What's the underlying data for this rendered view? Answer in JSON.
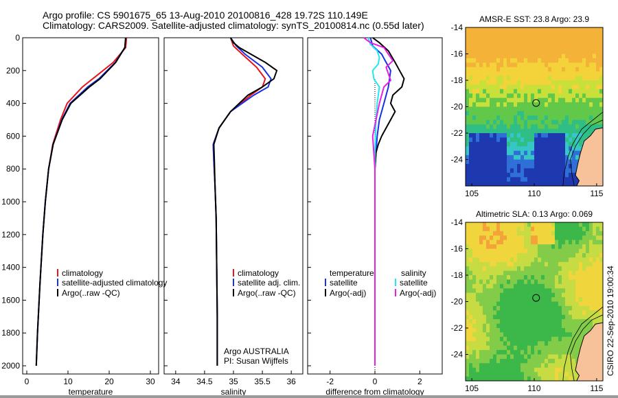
{
  "header": {
    "line1": "Argo profile: CS 5901675_65 13-Aug-2010 20100816_428 19.72S 110.149E",
    "line2": "Climatology: CARS2009. Satellite-adjusted climatology: synTS_20100814.nc (0.55d later)"
  },
  "stamp": "CSIRO 22-Sep-2010 19:00:34",
  "colors": {
    "climatology": "#e8141a",
    "satellite": "#1530e6",
    "argo": "#000000",
    "sal_satellite": "#22e8ee",
    "sal_argo": "#e61ee6"
  },
  "chart_data": [
    {
      "type": "line",
      "name": "temperature-panel",
      "xlabel": "temperature",
      "ylabel": "",
      "xlim": [
        -1,
        32
      ],
      "ylim": [
        0,
        2050
      ],
      "y_reversed": true,
      "x_ticks": [
        "0",
        "10",
        "20",
        "30"
      ],
      "y_ticks": [
        "0",
        "200",
        "400",
        "600",
        "800",
        "1000",
        "1200",
        "1400",
        "1600",
        "1800",
        "2000"
      ],
      "legend": [
        "climatology",
        "satellite-adjusted climatology",
        "Argo(..raw -QC)"
      ],
      "series": [
        {
          "key": "climatology",
          "depth": [
            0,
            60,
            150,
            250,
            300,
            400,
            500,
            650,
            800,
            1000,
            1200,
            1500,
            1800,
            2000
          ],
          "values": [
            24.2,
            24.0,
            21.0,
            16.0,
            13.5,
            9.8,
            8.2,
            6.3,
            5.3,
            4.5,
            3.9,
            3.2,
            2.6,
            2.3
          ]
        },
        {
          "key": "satellite",
          "depth": [
            0,
            60,
            150,
            250,
            300,
            400,
            500,
            650,
            800,
            1000,
            1200,
            1500,
            1800,
            2000
          ],
          "values": [
            24.0,
            23.8,
            21.5,
            17.5,
            14.8,
            10.5,
            8.5,
            6.4,
            5.3,
            4.5,
            3.9,
            3.2,
            2.6,
            2.3
          ]
        },
        {
          "key": "argo",
          "depth": [
            0,
            60,
            150,
            250,
            300,
            400,
            500,
            650,
            800,
            1000,
            1200,
            1500,
            1800,
            2000
          ],
          "values": [
            24.0,
            23.8,
            21.6,
            17.8,
            15.2,
            10.7,
            8.6,
            6.4,
            5.3,
            4.5,
            3.9,
            3.2,
            2.6,
            2.3
          ]
        }
      ]
    },
    {
      "type": "line",
      "name": "salinity-panel",
      "xlabel": "salinity",
      "ylabel": "",
      "xlim": [
        33.8,
        36.2
      ],
      "ylim": [
        0,
        2050
      ],
      "y_reversed": true,
      "x_ticks": [
        "34",
        "34.5",
        "35",
        "35.5",
        "36"
      ],
      "legend": [
        "climatology",
        "satellite adj. clim.",
        "Argo(..raw -QC)"
      ],
      "annotation": [
        "Argo AUSTRALIA",
        "PI: Susan Wijffels"
      ],
      "series": [
        {
          "key": "climatology",
          "depth": [
            0,
            50,
            100,
            180,
            250,
            300,
            350,
            450,
            550,
            650,
            750,
            900,
            1100,
            1400,
            1700,
            2000
          ],
          "values": [
            34.95,
            35.0,
            35.15,
            35.4,
            35.55,
            35.5,
            35.3,
            34.95,
            34.75,
            34.65,
            34.66,
            34.68,
            34.7,
            34.71,
            34.72,
            34.72
          ]
        },
        {
          "key": "satellite",
          "depth": [
            0,
            50,
            100,
            180,
            250,
            300,
            350,
            450,
            550,
            650,
            750,
            900,
            1100,
            1400,
            1700,
            2000
          ],
          "values": [
            34.95,
            35.05,
            35.2,
            35.5,
            35.65,
            35.6,
            35.35,
            34.95,
            34.75,
            34.65,
            34.66,
            34.68,
            34.7,
            34.71,
            34.72,
            34.72
          ]
        },
        {
          "key": "argo",
          "depth": [
            0,
            30,
            60,
            100,
            150,
            200,
            250,
            300,
            350,
            450,
            550,
            650,
            750,
            900,
            1100,
            1400,
            1700,
            2000
          ],
          "values": [
            34.95,
            35.0,
            35.1,
            35.3,
            35.55,
            35.75,
            35.7,
            35.5,
            35.25,
            34.95,
            34.75,
            34.66,
            34.67,
            34.68,
            34.7,
            34.71,
            34.72,
            34.72
          ]
        }
      ]
    },
    {
      "type": "line",
      "name": "difference-panel",
      "xlabel": "difference from climatology",
      "ylabel": "",
      "xlim": [
        -3,
        3
      ],
      "ylim": [
        0,
        2050
      ],
      "y_reversed": true,
      "x_ticks": [
        "-2",
        "0",
        "2"
      ],
      "legend_temperature": {
        "title": "temperature",
        "items": [
          "satellite",
          "Argo(-adj)"
        ]
      },
      "legend_salinity": {
        "title": "salinity",
        "items": [
          "satellite",
          "Argo(-adj)"
        ]
      },
      "series": [
        {
          "key": "satellite",
          "depth": [
            0,
            50,
            100,
            150,
            200,
            300,
            400,
            500,
            600,
            700,
            800,
            1000,
            1500,
            2000
          ],
          "values": [
            -0.2,
            -0.1,
            0.3,
            0.5,
            0.7,
            0.6,
            0.4,
            0.2,
            0.1,
            0.05,
            0.0,
            0.0,
            0.0,
            0.0
          ]
        },
        {
          "key": "argo",
          "depth": [
            0,
            30,
            80,
            150,
            200,
            250,
            300,
            350,
            400,
            450,
            500,
            550,
            600,
            650,
            700,
            800,
            1000,
            1500,
            2000
          ],
          "values": [
            -0.1,
            0.2,
            0.6,
            0.9,
            1.1,
            1.3,
            1.2,
            0.8,
            0.7,
            0.9,
            0.7,
            0.5,
            0.3,
            0.15,
            0.05,
            0.0,
            0.0,
            0.0,
            0.0
          ]
        },
        {
          "key": "sal_satellite",
          "depth": [
            0,
            40,
            80,
            120,
            160,
            200,
            250,
            300,
            400,
            500,
            600,
            700,
            800,
            1000,
            1500,
            2000
          ],
          "values": [
            -0.3,
            -0.2,
            0.1,
            0.2,
            0.15,
            -0.1,
            -0.05,
            0.2,
            0.1,
            0.05,
            0.02,
            0.0,
            0.0,
            0.0,
            0.0,
            0.0
          ]
        },
        {
          "key": "sal_argo",
          "depth": [
            0,
            30,
            60,
            100,
            140,
            180,
            220,
            260,
            300,
            400,
            500,
            600,
            700,
            800,
            1000,
            1500,
            2000
          ],
          "values": [
            -0.5,
            -0.2,
            0.4,
            0.6,
            0.8,
            0.5,
            0.6,
            0.7,
            0.4,
            0.2,
            0.05,
            -0.1,
            -0.05,
            0.0,
            0.0,
            0.0,
            0.0
          ]
        }
      ]
    },
    {
      "type": "heatmap",
      "name": "sst-map",
      "title": "AMSR-E SST: 23.8 Argo: 23.9",
      "xlim": [
        104.5,
        115.5
      ],
      "ylim": [
        -26,
        -14
      ],
      "x_ticks": [
        "105",
        "110",
        "115"
      ],
      "y_ticks": [
        "-14",
        "-16",
        "-18",
        "-20",
        "-22",
        "-24"
      ],
      "marker": {
        "lon": 110.15,
        "lat": -19.72
      }
    },
    {
      "type": "heatmap",
      "name": "sla-map",
      "title": "Altimetric SLA: 0.13 Argo: 0.069",
      "xlim": [
        104.5,
        115.5
      ],
      "ylim": [
        -26,
        -14
      ],
      "x_ticks": [
        "105",
        "110",
        "115"
      ],
      "y_ticks": [
        "-14",
        "-16",
        "-18",
        "-20",
        "-22",
        "-24"
      ],
      "marker": {
        "lon": 110.15,
        "lat": -19.72
      }
    }
  ]
}
